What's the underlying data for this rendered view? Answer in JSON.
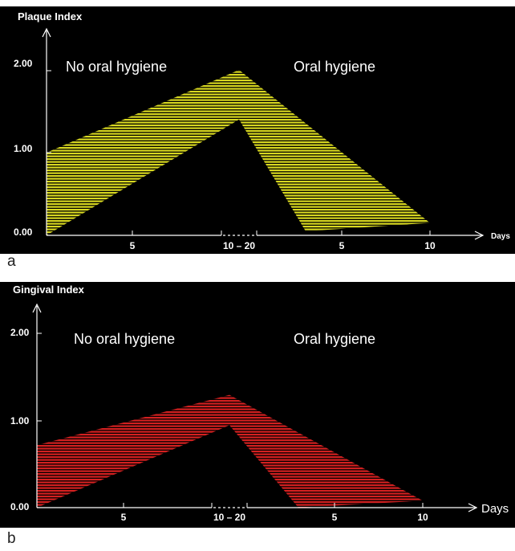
{
  "chart_data": [
    {
      "type": "area",
      "panel_label": "a",
      "ylabel": "Plaque Index",
      "xlabel": "Days",
      "y_ticks": [
        "0.00",
        "1.00",
        "2.00"
      ],
      "x_ticks": [
        "5",
        "10 – 20",
        "5",
        "10"
      ],
      "phase_labels": [
        "No oral hygiene",
        "Oral hygiene"
      ],
      "ylim": [
        0,
        2.4
      ],
      "band_color": "#d8d820",
      "upper_bound": [
        {
          "x": "0",
          "y": 1.0
        },
        {
          "x": "10 – 20",
          "y": 2.0
        },
        {
          "x": "10",
          "y": 0.15
        }
      ],
      "lower_bound": [
        {
          "x": "0",
          "y": 0.0
        },
        {
          "x": "10 – 20",
          "y": 1.4
        },
        {
          "x": "3",
          "y": 0.05
        },
        {
          "x": "10",
          "y": 0.15
        }
      ]
    },
    {
      "type": "area",
      "panel_label": "b",
      "ylabel": "Gingival Index",
      "xlabel": "Days",
      "y_ticks": [
        "0.00",
        "1.00",
        "2.00"
      ],
      "x_ticks": [
        "5",
        "10 – 20",
        "5",
        "10"
      ],
      "phase_labels": [
        "No oral hygiene",
        "Oral hygiene"
      ],
      "ylim": [
        0,
        2.4
      ],
      "band_color": "#d42020",
      "upper_bound": [
        {
          "x": "0",
          "y": 0.72
        },
        {
          "x": "10 – 20",
          "y": 1.3
        },
        {
          "x": "10",
          "y": 0.08
        }
      ],
      "lower_bound": [
        {
          "x": "0",
          "y": 0.0
        },
        {
          "x": "10 – 20",
          "y": 0.95
        },
        {
          "x": "3",
          "y": 0.0
        },
        {
          "x": "10",
          "y": 0.08
        }
      ]
    }
  ]
}
